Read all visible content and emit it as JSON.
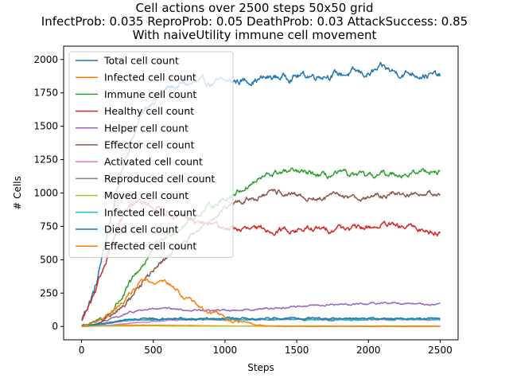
{
  "chart_data": {
    "type": "line",
    "title_lines": [
      "Cell actions over 2500 steps 50x50 grid",
      "InfectProb: 0.035 ReproProb: 0.05 DeathProb: 0.03 AttackSuccess: 0.85",
      "With naiveUtility immune cell movement"
    ],
    "xlabel": "Steps",
    "ylabel": "# Cells",
    "xlim": [
      -125,
      2625
    ],
    "ylim": [
      -100,
      2100
    ],
    "xticks": [
      0,
      500,
      1000,
      1500,
      2000,
      2500
    ],
    "yticks": [
      0,
      250,
      500,
      750,
      1000,
      1250,
      1500,
      1750,
      2000
    ],
    "grid": false,
    "legend_position": "top-left",
    "x": [
      0,
      100,
      200,
      300,
      400,
      500,
      600,
      700,
      800,
      900,
      1000,
      1100,
      1200,
      1300,
      1400,
      1500,
      1600,
      1700,
      1800,
      1900,
      2000,
      2100,
      2200,
      2300,
      2400,
      2500
    ],
    "series": [
      {
        "name": "Total cell count",
        "color": "#1f77b4",
        "noise": 18,
        "values": [
          50,
          300,
          800,
          1250,
          1550,
          1700,
          1780,
          1810,
          1820,
          1820,
          1830,
          1840,
          1850,
          1860,
          1870,
          1880,
          1880,
          1890,
          1890,
          1900,
          1890,
          1930,
          1900,
          1900,
          1890,
          1870
        ]
      },
      {
        "name": "Infected cell count",
        "color": "#ff7f0e",
        "noise": 3,
        "values": [
          0,
          5,
          8,
          10,
          10,
          10,
          8,
          8,
          6,
          5,
          4,
          3,
          2,
          2,
          1,
          1,
          1,
          1,
          1,
          1,
          1,
          1,
          1,
          1,
          1,
          1
        ]
      },
      {
        "name": "Immune cell count",
        "color": "#2ca02c",
        "noise": 15,
        "values": [
          10,
          30,
          100,
          250,
          420,
          580,
          680,
          760,
          830,
          900,
          960,
          1020,
          1080,
          1130,
          1160,
          1150,
          1140,
          1120,
          1140,
          1130,
          1120,
          1140,
          1150,
          1140,
          1170,
          1160
        ]
      },
      {
        "name": "Healthy cell count",
        "color": "#d62728",
        "noise": 15,
        "values": [
          40,
          250,
          600,
          850,
          930,
          900,
          860,
          810,
          780,
          760,
          740,
          730,
          720,
          720,
          730,
          720,
          730,
          720,
          750,
          730,
          740,
          760,
          740,
          740,
          720,
          700
        ]
      },
      {
        "name": "Helper cell count",
        "color": "#9467bd",
        "noise": 5,
        "values": [
          5,
          20,
          50,
          90,
          120,
          130,
          130,
          125,
          120,
          120,
          120,
          125,
          130,
          135,
          140,
          150,
          160,
          160,
          165,
          170,
          170,
          180,
          175,
          175,
          165,
          160
        ]
      },
      {
        "name": "Effector cell count",
        "color": "#8c564b",
        "noise": 14,
        "values": [
          5,
          20,
          60,
          160,
          300,
          420,
          520,
          620,
          720,
          800,
          880,
          930,
          960,
          990,
          1000,
          970,
          960,
          960,
          980,
          970,
          970,
          980,
          1000,
          990,
          1010,
          990
        ]
      },
      {
        "name": "Activated cell count",
        "color": "#e377c2",
        "noise": 3,
        "values": [
          0,
          5,
          10,
          20,
          30,
          40,
          45,
          48,
          50,
          50,
          50,
          50,
          50,
          50,
          50,
          50,
          50,
          50,
          50,
          50,
          50,
          50,
          50,
          50,
          50,
          50
        ]
      },
      {
        "name": "Reproduced cell count",
        "color": "#7f7f7f",
        "noise": 3,
        "values": [
          2,
          10,
          25,
          40,
          50,
          55,
          55,
          55,
          55,
          55,
          55,
          55,
          55,
          55,
          55,
          55,
          55,
          55,
          55,
          55,
          55,
          55,
          55,
          55,
          55,
          55
        ]
      },
      {
        "name": "Moved cell count",
        "color": "#bcbd22",
        "noise": 2,
        "values": [
          0,
          2,
          3,
          4,
          4,
          4,
          4,
          3,
          3,
          3,
          3,
          3,
          3,
          3,
          3,
          3,
          3,
          3,
          3,
          3,
          3,
          3,
          3,
          3,
          3,
          3
        ]
      },
      {
        "name": "Infected cell count",
        "color": "#17becf",
        "noise": 4,
        "values": [
          2,
          15,
          30,
          45,
          50,
          52,
          52,
          52,
          52,
          52,
          52,
          52,
          52,
          52,
          52,
          52,
          52,
          52,
          52,
          52,
          52,
          52,
          52,
          52,
          52,
          52
        ]
      },
      {
        "name": "Died cell count",
        "color": "#1f77b4",
        "noise": 5,
        "values": [
          2,
          15,
          30,
          45,
          55,
          58,
          58,
          58,
          58,
          58,
          58,
          58,
          58,
          58,
          58,
          58,
          58,
          58,
          58,
          58,
          58,
          58,
          58,
          58,
          58,
          55
        ]
      },
      {
        "name": "Effected cell count",
        "color": "#ff7f0e",
        "noise": 12,
        "values": [
          0,
          30,
          90,
          200,
          320,
          350,
          330,
          240,
          160,
          110,
          60,
          30,
          15,
          5,
          2,
          1,
          1,
          1,
          1,
          1,
          1,
          1,
          1,
          1,
          1,
          1
        ]
      }
    ]
  }
}
